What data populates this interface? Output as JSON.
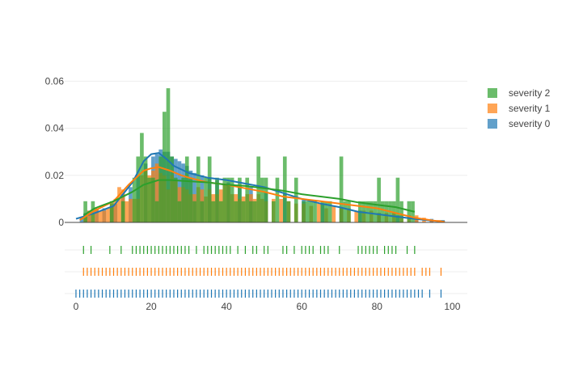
{
  "chart_data": {
    "type": "histogram-distplot",
    "histnorm": "probability density",
    "x_axis": {
      "range": [
        -3,
        104
      ],
      "ticks": [
        0,
        20,
        40,
        60,
        80,
        100
      ],
      "tick_labels": [
        "0",
        "20",
        "40",
        "60",
        "80",
        "100"
      ]
    },
    "y_axis": {
      "range": [
        0,
        0.0615
      ],
      "ticks": [
        0,
        0.02,
        0.04,
        0.06
      ],
      "tick_labels": [
        "0",
        "0.02",
        "0.04",
        "0.06"
      ]
    },
    "grid": true,
    "legend": {
      "placement": "top-right",
      "items": [
        {
          "label": "severity 2",
          "color": "#2ca02c"
        },
        {
          "label": "severity 1",
          "color": "#ff7f0e"
        },
        {
          "label": "severity 0",
          "color": "#1f77b4"
        }
      ]
    },
    "bin_width": 1,
    "series": [
      {
        "name": "severity 0",
        "color": "#1f77b4",
        "bins": [
          [
            1,
            0.002
          ],
          [
            2,
            0.004
          ],
          [
            3,
            0.005
          ],
          [
            5,
            0.006
          ],
          [
            7,
            0.006
          ],
          [
            9,
            0.007
          ],
          [
            10,
            0.008
          ],
          [
            12,
            0.012
          ],
          [
            14,
            0.015
          ],
          [
            16,
            0.02
          ],
          [
            18,
            0.025
          ],
          [
            20,
            0.028
          ],
          [
            21,
            0.029
          ],
          [
            22,
            0.031
          ],
          [
            23,
            0.03
          ],
          [
            24,
            0.03
          ],
          [
            25,
            0.028
          ],
          [
            26,
            0.027
          ],
          [
            27,
            0.026
          ],
          [
            28,
            0.025
          ],
          [
            29,
            0.024
          ],
          [
            30,
            0.022
          ],
          [
            31,
            0.021
          ],
          [
            33,
            0.02
          ],
          [
            35,
            0.019
          ],
          [
            37,
            0.018
          ],
          [
            40,
            0.017
          ],
          [
            43,
            0.016
          ],
          [
            46,
            0.015
          ],
          [
            50,
            0.013
          ],
          [
            55,
            0.012
          ],
          [
            60,
            0.01
          ],
          [
            65,
            0.008
          ],
          [
            70,
            0.006
          ],
          [
            75,
            0.005
          ],
          [
            80,
            0.004
          ],
          [
            85,
            0.003
          ],
          [
            90,
            0.002
          ],
          [
            94,
            0.0015
          ],
          [
            97,
            0.001
          ]
        ],
        "kde": [
          [
            0,
            0.0015
          ],
          [
            5,
            0.004
          ],
          [
            10,
            0.007
          ],
          [
            15,
            0.017
          ],
          [
            18,
            0.026
          ],
          [
            20,
            0.029
          ],
          [
            22,
            0.0295
          ],
          [
            24,
            0.027
          ],
          [
            26,
            0.024
          ],
          [
            30,
            0.021
          ],
          [
            35,
            0.019
          ],
          [
            40,
            0.018
          ],
          [
            45,
            0.0165
          ],
          [
            50,
            0.015
          ],
          [
            55,
            0.0125
          ],
          [
            60,
            0.01
          ],
          [
            65,
            0.008
          ],
          [
            70,
            0.0065
          ],
          [
            75,
            0.0045
          ],
          [
            80,
            0.0035
          ],
          [
            85,
            0.0025
          ],
          [
            90,
            0.0015
          ],
          [
            95,
            0.0007
          ],
          [
            98,
            0.0003
          ]
        ],
        "rug": [
          0,
          1,
          2,
          3,
          4,
          5,
          6,
          7,
          8,
          9,
          10,
          11,
          12,
          13,
          14,
          15,
          16,
          17,
          18,
          19,
          20,
          21,
          22,
          23,
          24,
          25,
          26,
          27,
          28,
          29,
          30,
          31,
          32,
          33,
          34,
          35,
          36,
          37,
          38,
          39,
          40,
          41,
          42,
          43,
          44,
          45,
          46,
          47,
          48,
          49,
          50,
          51,
          52,
          53,
          54,
          55,
          56,
          57,
          58,
          59,
          60,
          61,
          62,
          63,
          64,
          65,
          66,
          67,
          68,
          69,
          70,
          71,
          72,
          73,
          74,
          75,
          76,
          77,
          78,
          79,
          80,
          81,
          82,
          83,
          84,
          85,
          86,
          87,
          88,
          89,
          90,
          91,
          92,
          94,
          97
        ]
      },
      {
        "name": "severity 1",
        "color": "#ff7f0e",
        "bins": [
          [
            2,
            0.003
          ],
          [
            3,
            0.005
          ],
          [
            4,
            0.004
          ],
          [
            5,
            0.006
          ],
          [
            6,
            0.005
          ],
          [
            7,
            0.005
          ],
          [
            8,
            0.006
          ],
          [
            9,
            0.008
          ],
          [
            10,
            0.01
          ],
          [
            11,
            0.015
          ],
          [
            12,
            0.014
          ],
          [
            13,
            0.009
          ],
          [
            14,
            0.01
          ],
          [
            15,
            0.01
          ],
          [
            16,
            0.01
          ],
          [
            17,
            0.02
          ],
          [
            18,
            0.022
          ],
          [
            19,
            0.02
          ],
          [
            20,
            0.022
          ],
          [
            21,
            0.025
          ],
          [
            22,
            0.021
          ],
          [
            23,
            0.02
          ],
          [
            24,
            0.014
          ],
          [
            25,
            0.02
          ],
          [
            26,
            0.018
          ],
          [
            27,
            0.015
          ],
          [
            28,
            0.015
          ],
          [
            29,
            0.014
          ],
          [
            30,
            0.012
          ],
          [
            31,
            0.012
          ],
          [
            32,
            0.015
          ],
          [
            33,
            0.014
          ],
          [
            34,
            0.011
          ],
          [
            35,
            0.014
          ],
          [
            36,
            0.012
          ],
          [
            37,
            0.012
          ],
          [
            38,
            0.014
          ],
          [
            39,
            0.016
          ],
          [
            40,
            0.016
          ],
          [
            41,
            0.012
          ],
          [
            42,
            0.012
          ],
          [
            43,
            0.01
          ],
          [
            44,
            0.011
          ],
          [
            45,
            0.012
          ],
          [
            46,
            0.012
          ],
          [
            47,
            0.01
          ],
          [
            48,
            0.012
          ],
          [
            49,
            0.01
          ],
          [
            50,
            0.009
          ],
          [
            52,
            0.01
          ],
          [
            54,
            0.01
          ],
          [
            56,
            0.009
          ],
          [
            58,
            0.008
          ],
          [
            60,
            0.008
          ],
          [
            62,
            0.007
          ],
          [
            64,
            0.008
          ],
          [
            66,
            0.006
          ],
          [
            68,
            0.007
          ],
          [
            70,
            0.006
          ],
          [
            72,
            0.006
          ],
          [
            74,
            0.005
          ],
          [
            76,
            0.005
          ],
          [
            78,
            0.005
          ],
          [
            80,
            0.004
          ],
          [
            82,
            0.004
          ],
          [
            84,
            0.004
          ],
          [
            86,
            0.003
          ],
          [
            88,
            0.003
          ],
          [
            90,
            0.003
          ],
          [
            92,
            0.002
          ],
          [
            94,
            0.001
          ],
          [
            96,
            0.001
          ]
        ],
        "kde": [
          [
            1,
            0.001
          ],
          [
            5,
            0.005
          ],
          [
            10,
            0.009
          ],
          [
            14,
            0.016
          ],
          [
            18,
            0.022
          ],
          [
            20,
            0.023
          ],
          [
            22,
            0.0235
          ],
          [
            25,
            0.022
          ],
          [
            28,
            0.02
          ],
          [
            30,
            0.019
          ],
          [
            35,
            0.017
          ],
          [
            40,
            0.016
          ],
          [
            45,
            0.0145
          ],
          [
            50,
            0.013
          ],
          [
            55,
            0.011
          ],
          [
            60,
            0.01
          ],
          [
            65,
            0.009
          ],
          [
            70,
            0.008
          ],
          [
            75,
            0.007
          ],
          [
            80,
            0.006
          ],
          [
            85,
            0.004
          ],
          [
            90,
            0.002
          ],
          [
            95,
            0.0008
          ],
          [
            98,
            0.0002
          ]
        ],
        "rug": [
          2,
          3,
          4,
          5,
          6,
          7,
          8,
          9,
          10,
          11,
          12,
          13,
          14,
          15,
          16,
          17,
          18,
          19,
          20,
          21,
          22,
          23,
          24,
          25,
          26,
          27,
          28,
          29,
          30,
          31,
          32,
          33,
          34,
          35,
          36,
          37,
          38,
          39,
          40,
          41,
          42,
          43,
          44,
          45,
          46,
          47,
          48,
          49,
          50,
          51,
          52,
          53,
          54,
          55,
          56,
          57,
          58,
          59,
          60,
          61,
          62,
          63,
          64,
          65,
          66,
          67,
          68,
          69,
          70,
          71,
          72,
          73,
          74,
          75,
          76,
          77,
          78,
          79,
          80,
          81,
          82,
          83,
          84,
          85,
          86,
          87,
          88,
          89,
          90,
          92,
          93,
          94,
          97
        ]
      },
      {
        "name": "severity 2",
        "color": "#2ca02c",
        "bins": [
          [
            2,
            0.009
          ],
          [
            4,
            0.009
          ],
          [
            9,
            0.009
          ],
          [
            12,
            0.009
          ],
          [
            15,
            0.019
          ],
          [
            16,
            0.028
          ],
          [
            17,
            0.038
          ],
          [
            18,
            0.028
          ],
          [
            19,
            0.019
          ],
          [
            20,
            0.019
          ],
          [
            21,
            0.009
          ],
          [
            22,
            0.028
          ],
          [
            23,
            0.047
          ],
          [
            24,
            0.057
          ],
          [
            25,
            0.028
          ],
          [
            26,
            0.019
          ],
          [
            27,
            0.009
          ],
          [
            28,
            0.019
          ],
          [
            29,
            0.028
          ],
          [
            30,
            0.019
          ],
          [
            31,
            0.009
          ],
          [
            32,
            0.028
          ],
          [
            33,
            0.009
          ],
          [
            34,
            0.019
          ],
          [
            35,
            0.028
          ],
          [
            36,
            0.009
          ],
          [
            37,
            0.019
          ],
          [
            38,
            0.009
          ],
          [
            39,
            0.019
          ],
          [
            40,
            0.019
          ],
          [
            41,
            0.019
          ],
          [
            42,
            0.009
          ],
          [
            43,
            0.019
          ],
          [
            44,
            0.009
          ],
          [
            45,
            0.019
          ],
          [
            46,
            0.009
          ],
          [
            47,
            0.009
          ],
          [
            48,
            0.028
          ],
          [
            49,
            0.019
          ],
          [
            50,
            0.019
          ],
          [
            52,
            0.009
          ],
          [
            53,
            0.019
          ],
          [
            55,
            0.028
          ],
          [
            56,
            0.009
          ],
          [
            58,
            0.019
          ],
          [
            60,
            0.009
          ],
          [
            61,
            0.009
          ],
          [
            62,
            0.009
          ],
          [
            63,
            0.009
          ],
          [
            65,
            0.009
          ],
          [
            66,
            0.009
          ],
          [
            67,
            0.009
          ],
          [
            70,
            0.028
          ],
          [
            71,
            0.009
          ],
          [
            72,
            0.009
          ],
          [
            75,
            0.009
          ],
          [
            76,
            0.009
          ],
          [
            77,
            0.009
          ],
          [
            78,
            0.009
          ],
          [
            79,
            0.009
          ],
          [
            80,
            0.019
          ],
          [
            81,
            0.009
          ],
          [
            82,
            0.009
          ],
          [
            83,
            0.009
          ],
          [
            84,
            0.009
          ],
          [
            85,
            0.019
          ],
          [
            86,
            0.009
          ],
          [
            88,
            0.009
          ],
          [
            89,
            0.009
          ]
        ],
        "kde": [
          [
            2,
            0.003
          ],
          [
            5,
            0.006
          ],
          [
            10,
            0.009
          ],
          [
            15,
            0.013
          ],
          [
            18,
            0.016
          ],
          [
            20,
            0.017
          ],
          [
            22,
            0.018
          ],
          [
            25,
            0.018
          ],
          [
            30,
            0.0175
          ],
          [
            35,
            0.017
          ],
          [
            40,
            0.016
          ],
          [
            45,
            0.0155
          ],
          [
            50,
            0.0145
          ],
          [
            55,
            0.0135
          ],
          [
            60,
            0.012
          ],
          [
            65,
            0.011
          ],
          [
            70,
            0.01
          ],
          [
            75,
            0.0085
          ],
          [
            80,
            0.0075
          ],
          [
            85,
            0.0065
          ],
          [
            90,
            0.0045
          ]
        ],
        "rug": [
          2,
          4,
          9,
          12,
          15,
          16,
          17,
          18,
          19,
          20,
          21,
          22,
          23,
          24,
          25,
          26,
          27,
          28,
          29,
          30,
          32,
          34,
          35,
          36,
          37,
          38,
          39,
          40,
          41,
          43,
          45,
          47,
          48,
          50,
          51,
          55,
          56,
          58,
          60,
          61,
          62,
          63,
          65,
          66,
          67,
          70,
          75,
          76,
          77,
          78,
          79,
          80,
          82,
          83,
          84,
          85,
          88,
          90
        ]
      }
    ]
  }
}
